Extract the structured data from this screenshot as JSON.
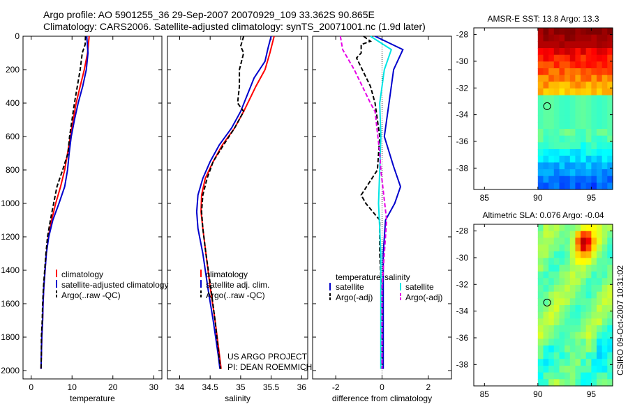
{
  "header": {
    "line1": "Argo profile: AO 5901255_36 29-Sep-2007 20070929_109 33.362S 90.865E",
    "line2": "Climatology: CARS2006. Satellite-adjusted climatology: synTS_20071001.nc (1.9d later)"
  },
  "colors": {
    "red": "#ff0000",
    "blue": "#0000cc",
    "black": "#000000",
    "cyan": "#00e5e5",
    "magenta": "#e600e6"
  },
  "chart_data": [
    {
      "id": "temperature",
      "type": "line",
      "xlabel": "temperature",
      "xlim": [
        -2,
        32
      ],
      "ylim": [
        0,
        2050
      ],
      "xticks": [
        0,
        10,
        20,
        30
      ],
      "yticks": [
        0,
        200,
        400,
        600,
        800,
        1000,
        1200,
        1400,
        1600,
        1800,
        2000
      ],
      "series": [
        {
          "name": "climatology",
          "color": "red",
          "dash": false,
          "points": [
            [
              14.2,
              0
            ],
            [
              13.8,
              100
            ],
            [
              13.0,
              200
            ],
            [
              12.0,
              300
            ],
            [
              11.0,
              400
            ],
            [
              10.3,
              500
            ],
            [
              9.6,
              600
            ],
            [
              8.9,
              700
            ],
            [
              8.2,
              800
            ],
            [
              7.2,
              900
            ],
            [
              6.0,
              1000
            ],
            [
              5.0,
              1100
            ],
            [
              4.2,
              1200
            ],
            [
              3.7,
              1300
            ],
            [
              3.4,
              1400
            ],
            [
              3.1,
              1500
            ],
            [
              2.9,
              1600
            ],
            [
              2.8,
              1700
            ],
            [
              2.6,
              1800
            ],
            [
              2.5,
              1900
            ],
            [
              2.4,
              1990
            ]
          ]
        },
        {
          "name": "satellite-adjusted climatology",
          "color": "blue",
          "dash": false,
          "points": [
            [
              13.6,
              0
            ],
            [
              13.9,
              100
            ],
            [
              13.5,
              200
            ],
            [
              12.6,
              300
            ],
            [
              11.5,
              400
            ],
            [
              10.6,
              500
            ],
            [
              9.8,
              600
            ],
            [
              9.3,
              700
            ],
            [
              8.9,
              800
            ],
            [
              8.2,
              900
            ],
            [
              6.8,
              1000
            ],
            [
              5.3,
              1100
            ],
            [
              4.3,
              1200
            ],
            [
              3.7,
              1300
            ],
            [
              3.4,
              1400
            ],
            [
              3.1,
              1500
            ],
            [
              2.9,
              1600
            ],
            [
              2.8,
              1700
            ],
            [
              2.6,
              1800
            ],
            [
              2.5,
              1900
            ],
            [
              2.4,
              1990
            ]
          ]
        },
        {
          "name": "Argo(..raw -QC)",
          "color": "black",
          "dash": true,
          "points": [
            [
              13.3,
              0
            ],
            [
              13.2,
              50
            ],
            [
              12.5,
              100
            ],
            [
              12.0,
              200
            ],
            [
              11.3,
              300
            ],
            [
              10.6,
              400
            ],
            [
              10.0,
              500
            ],
            [
              9.4,
              600
            ],
            [
              9.0,
              700
            ],
            [
              7.7,
              800
            ],
            [
              6.3,
              900
            ],
            [
              5.5,
              1000
            ],
            [
              4.7,
              1100
            ],
            [
              4.0,
              1200
            ],
            [
              3.6,
              1300
            ],
            [
              3.3,
              1400
            ],
            [
              3.0,
              1500
            ],
            [
              2.8,
              1600
            ],
            [
              2.7,
              1700
            ],
            [
              2.5,
              1800
            ],
            [
              2.5,
              1900
            ],
            [
              2.4,
              1990
            ]
          ]
        }
      ],
      "legend": [
        "climatology",
        "satellite-adjusted climatology",
        "Argo(..raw -QC)"
      ]
    },
    {
      "id": "salinity",
      "type": "line",
      "xlabel": "salinity",
      "xlim": [
        33.8,
        36.1
      ],
      "ylim": [
        0,
        2050
      ],
      "xticks": [
        34,
        34.5,
        35,
        35.5,
        36
      ],
      "yticks": [
        0,
        200,
        400,
        600,
        800,
        1000,
        1200,
        1400,
        1600,
        1800,
        2000
      ],
      "series": [
        {
          "name": "climatology",
          "color": "red",
          "dash": false,
          "points": [
            [
              35.55,
              0
            ],
            [
              35.48,
              100
            ],
            [
              35.4,
              200
            ],
            [
              35.25,
              300
            ],
            [
              35.05,
              450
            ],
            [
              34.9,
              550
            ],
            [
              34.7,
              650
            ],
            [
              34.55,
              750
            ],
            [
              34.42,
              850
            ],
            [
              34.36,
              950
            ],
            [
              34.35,
              1050
            ],
            [
              34.38,
              1150
            ],
            [
              34.43,
              1300
            ],
            [
              34.5,
              1500
            ],
            [
              34.58,
              1700
            ],
            [
              34.65,
              1900
            ],
            [
              34.68,
              1990
            ]
          ]
        },
        {
          "name": "satellite adj. clim.",
          "color": "blue",
          "dash": false,
          "points": [
            [
              35.5,
              0
            ],
            [
              35.45,
              70
            ],
            [
              35.4,
              150
            ],
            [
              35.22,
              250
            ],
            [
              35.0,
              450
            ],
            [
              34.85,
              550
            ],
            [
              34.65,
              650
            ],
            [
              34.5,
              750
            ],
            [
              34.38,
              850
            ],
            [
              34.3,
              950
            ],
            [
              34.28,
              1050
            ],
            [
              34.3,
              1150
            ],
            [
              34.38,
              1300
            ],
            [
              34.46,
              1500
            ],
            [
              34.55,
              1700
            ],
            [
              34.63,
              1900
            ],
            [
              34.66,
              1990
            ]
          ]
        },
        {
          "name": "Argo(..raw -QC)",
          "color": "black",
          "dash": true,
          "points": [
            [
              35.05,
              0
            ],
            [
              35.0,
              60
            ],
            [
              35.05,
              100
            ],
            [
              34.98,
              200
            ],
            [
              34.98,
              300
            ],
            [
              34.95,
              400
            ],
            [
              35.05,
              450
            ],
            [
              34.9,
              550
            ],
            [
              34.72,
              650
            ],
            [
              34.55,
              750
            ],
            [
              34.45,
              850
            ],
            [
              34.38,
              950
            ],
            [
              34.36,
              1050
            ],
            [
              34.38,
              1150
            ],
            [
              34.43,
              1300
            ],
            [
              34.51,
              1500
            ],
            [
              34.58,
              1700
            ],
            [
              34.64,
              1900
            ],
            [
              34.67,
              1990
            ]
          ]
        }
      ],
      "legend": [
        "climatology",
        "satellite adj. clim.",
        "Argo(..raw -QC)"
      ],
      "annotation": [
        "US ARGO PROJECT",
        "PI: DEAN ROEMMICH"
      ]
    },
    {
      "id": "difference",
      "type": "line",
      "xlabel": "difference from climatology",
      "xlim": [
        -3,
        3
      ],
      "ylim": [
        0,
        2050
      ],
      "xticks": [
        -2,
        0,
        2
      ],
      "yticks": [
        0,
        200,
        400,
        600,
        800,
        1000,
        1200,
        1400,
        1600,
        1800,
        2000
      ],
      "series": [
        {
          "name": "temperature satellite",
          "color": "blue",
          "dash": false,
          "points": [
            [
              -0.3,
              0
            ],
            [
              0.9,
              80
            ],
            [
              0.5,
              200
            ],
            [
              0.3,
              400
            ],
            [
              0.1,
              600
            ],
            [
              0.5,
              780
            ],
            [
              0.8,
              900
            ],
            [
              0.55,
              1000
            ],
            [
              0.15,
              1100
            ],
            [
              0.05,
              1300
            ],
            [
              0.05,
              1600
            ],
            [
              0.05,
              1990
            ]
          ]
        },
        {
          "name": "temperature Argo(-adj)",
          "color": "black",
          "dash": true,
          "points": [
            [
              -0.8,
              0
            ],
            [
              -0.5,
              30
            ],
            [
              -0.9,
              50
            ],
            [
              -0.9,
              100
            ],
            [
              -1.1,
              130
            ],
            [
              -0.5,
              300
            ],
            [
              -0.3,
              400
            ],
            [
              -0.1,
              600
            ],
            [
              -0.2,
              800
            ],
            [
              -0.9,
              950
            ],
            [
              -0.7,
              1000
            ],
            [
              -0.1,
              1100
            ],
            [
              -0.1,
              1300
            ],
            [
              0.0,
              1600
            ],
            [
              0.0,
              1990
            ]
          ]
        },
        {
          "name": "salinity satellite",
          "color": "cyan",
          "dash": false,
          "points": [
            [
              -0.5,
              0
            ],
            [
              0.4,
              80
            ],
            [
              0.1,
              200
            ],
            [
              -0.1,
              400
            ],
            [
              -0.05,
              600
            ],
            [
              -0.1,
              800
            ],
            [
              -0.15,
              1000
            ],
            [
              -0.05,
              1300
            ],
            [
              -0.05,
              1600
            ],
            [
              -0.05,
              1990
            ]
          ]
        },
        {
          "name": "salinity Argo(-adj)",
          "color": "magenta",
          "dash": true,
          "points": [
            [
              -1.8,
              0
            ],
            [
              -1.7,
              80
            ],
            [
              -1.2,
              200
            ],
            [
              -0.5,
              400
            ],
            [
              -0.3,
              450
            ],
            [
              -0.1,
              700
            ],
            [
              -0.05,
              800
            ],
            [
              0.2,
              1100
            ],
            [
              0.0,
              1500
            ],
            [
              0.0,
              1990
            ]
          ]
        }
      ],
      "legend_temperature": {
        "title": "temperature",
        "items": [
          "satellite",
          "Argo(-adj)"
        ]
      },
      "legend_salinity": {
        "title": "salinity",
        "items": [
          "satellite",
          "Argo(-adj)"
        ]
      }
    },
    {
      "id": "sst_map",
      "type": "heatmap",
      "title": "AMSR-E SST: 13.8 Argo: 13.3",
      "xticks": [
        85,
        90,
        95
      ],
      "yticks": [
        -28,
        -30,
        -32,
        -34,
        -36,
        -38
      ],
      "xlim": [
        84,
        97
      ],
      "ylim": [
        -39.6,
        -27.5
      ],
      "data_lon_range": [
        90,
        97
      ],
      "argo_position": [
        90.865,
        -33.362
      ]
    },
    {
      "id": "sla_map",
      "type": "heatmap",
      "title": "Altimetric SLA: 0.076 Argo: -0.04",
      "xticks": [
        85,
        90,
        95
      ],
      "yticks": [
        -28,
        -30,
        -32,
        -34,
        -36,
        -38
      ],
      "xlim": [
        84,
        97
      ],
      "ylim": [
        -39.6,
        -27.5
      ],
      "data_lon_range": [
        90,
        97
      ],
      "argo_position": [
        90.865,
        -33.362
      ],
      "side_label": "CSIRO 09-Oct-2007 10:31:02"
    }
  ]
}
